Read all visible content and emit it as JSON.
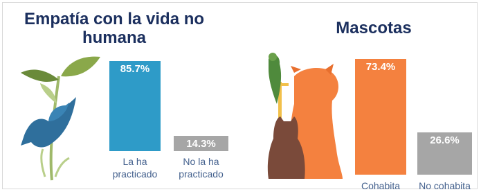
{
  "chart_data": [
    {
      "type": "bar",
      "title": "Empatía con la vida no humana",
      "categories": [
        "La ha practicado",
        "No la ha practicado"
      ],
      "values": [
        85.7,
        14.3
      ],
      "value_labels": [
        "85.7%",
        "14.3%"
      ],
      "colors": [
        "#2e9bc8",
        "#a6a6a6"
      ]
    },
    {
      "type": "bar",
      "title": "Mascotas",
      "categories": [
        "Cohabita",
        "No cohabita"
      ],
      "values": [
        73.4,
        26.6
      ],
      "value_labels": [
        "73.4%",
        "26.6%"
      ],
      "colors": [
        "#f4813f",
        "#a6a6a6"
      ]
    }
  ]
}
